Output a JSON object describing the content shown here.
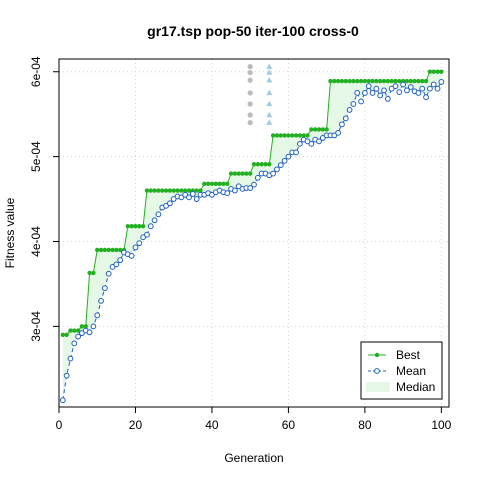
{
  "chart_data": {
    "type": "line",
    "title": "gr17.tsp pop-50 iter-100 cross-0",
    "xlabel": "Generation",
    "ylabel": "Fitness value",
    "xlim": [
      0,
      102
    ],
    "ylim": [
      0.000205,
      0.000615
    ],
    "x_ticks": [
      0,
      20,
      40,
      60,
      80,
      100
    ],
    "x_tick_labels": [
      "0",
      "20",
      "40",
      "60",
      "80",
      "100"
    ],
    "y_ticks": [
      0.0003,
      0.0004,
      0.0005,
      0.0006
    ],
    "y_tick_labels": [
      "3e-04",
      "4e-04",
      "5e-04",
      "6e-04"
    ],
    "grid": true,
    "legend_position": "bottom-right",
    "x": [
      1,
      2,
      3,
      4,
      5,
      6,
      7,
      8,
      9,
      10,
      11,
      12,
      13,
      14,
      15,
      16,
      17,
      18,
      19,
      20,
      21,
      22,
      23,
      24,
      25,
      26,
      27,
      28,
      29,
      30,
      31,
      32,
      33,
      34,
      35,
      36,
      37,
      38,
      39,
      40,
      41,
      42,
      43,
      44,
      45,
      46,
      47,
      48,
      49,
      50,
      51,
      52,
      53,
      54,
      55,
      56,
      57,
      58,
      59,
      60,
      61,
      62,
      63,
      64,
      65,
      66,
      67,
      68,
      69,
      70,
      71,
      72,
      73,
      74,
      75,
      76,
      77,
      78,
      79,
      80,
      81,
      82,
      83,
      84,
      85,
      86,
      87,
      88,
      89,
      90,
      91,
      92,
      93,
      94,
      95,
      96,
      97,
      98,
      99,
      100
    ],
    "series": [
      {
        "name": "Best",
        "color": "#22b022",
        "values": [
          0.00029,
          0.00029,
          0.000295,
          0.000295,
          0.000295,
          0.0003,
          0.0003,
          0.000363,
          0.000363,
          0.00039,
          0.00039,
          0.00039,
          0.00039,
          0.00039,
          0.00039,
          0.00039,
          0.00039,
          0.000418,
          0.000418,
          0.000418,
          0.000418,
          0.000418,
          0.00046,
          0.00046,
          0.00046,
          0.00046,
          0.00046,
          0.00046,
          0.00046,
          0.00046,
          0.00046,
          0.00046,
          0.00046,
          0.00046,
          0.00046,
          0.00046,
          0.00046,
          0.000468,
          0.000468,
          0.000468,
          0.000468,
          0.000468,
          0.000468,
          0.000468,
          0.00048,
          0.00048,
          0.00048,
          0.00048,
          0.00048,
          0.00048,
          0.000491,
          0.000491,
          0.000491,
          0.000491,
          0.000491,
          0.000525,
          0.000525,
          0.000525,
          0.000525,
          0.000525,
          0.000525,
          0.000525,
          0.000525,
          0.000525,
          0.000525,
          0.000532,
          0.000532,
          0.000532,
          0.000532,
          0.000532,
          0.000589,
          0.000589,
          0.000589,
          0.000589,
          0.000589,
          0.000589,
          0.000589,
          0.000589,
          0.000589,
          0.000589,
          0.000589,
          0.000589,
          0.000589,
          0.000589,
          0.000589,
          0.000589,
          0.000589,
          0.000589,
          0.000589,
          0.000589,
          0.000589,
          0.000589,
          0.000589,
          0.000589,
          0.000589,
          0.000589,
          0.0006,
          0.0006,
          0.0006,
          0.0006
        ]
      },
      {
        "name": "Mean",
        "color": "#1f5fbf",
        "values": [
          0.000213,
          0.000242,
          0.000262,
          0.00028,
          0.000288,
          0.000292,
          0.000295,
          0.000293,
          0.0003,
          0.000313,
          0.00033,
          0.000345,
          0.000362,
          0.00037,
          0.000373,
          0.000378,
          0.000387,
          0.000385,
          0.000383,
          0.000393,
          0.000398,
          0.000405,
          0.000408,
          0.000418,
          0.000425,
          0.000432,
          0.00044,
          0.000442,
          0.000445,
          0.00045,
          0.000453,
          0.000452,
          0.000455,
          0.000452,
          0.000456,
          0.00045,
          0.000455,
          0.000455,
          0.000457,
          0.000455,
          0.000458,
          0.00046,
          0.000458,
          0.000457,
          0.000462,
          0.00046,
          0.000465,
          0.000462,
          0.000463,
          0.000463,
          0.000467,
          0.000475,
          0.00048,
          0.00048,
          0.000478,
          0.00048,
          0.000485,
          0.00049,
          0.000495,
          0.0005,
          0.000505,
          0.000505,
          0.000515,
          0.00052,
          0.000518,
          0.000515,
          0.00052,
          0.000518,
          0.000522,
          0.000525,
          0.000525,
          0.000525,
          0.000528,
          0.000538,
          0.000545,
          0.000555,
          0.000562,
          0.000575,
          0.000565,
          0.000575,
          0.000583,
          0.000575,
          0.00058,
          0.000572,
          0.000578,
          0.000568,
          0.00058,
          0.000583,
          0.000576,
          0.000585,
          0.000578,
          0.000582,
          0.000577,
          0.000575,
          0.00058,
          0.00057,
          0.00058,
          0.000585,
          0.00058,
          0.000588
        ]
      },
      {
        "name": "Median",
        "color": "#e5f8e5",
        "values": [
          0.00029,
          0.00029,
          0.000295,
          0.000295,
          0.000295,
          0.0003,
          0.0003,
          0.000363,
          0.000363,
          0.00039,
          0.00039,
          0.00039,
          0.00039,
          0.00039,
          0.00039,
          0.00039,
          0.00039,
          0.000418,
          0.000418,
          0.000418,
          0.000418,
          0.000418,
          0.00046,
          0.00046,
          0.00046,
          0.00046,
          0.00046,
          0.00046,
          0.00046,
          0.00046,
          0.00046,
          0.00046,
          0.00046,
          0.00046,
          0.00046,
          0.00046,
          0.00046,
          0.000468,
          0.000468,
          0.000468,
          0.000468,
          0.000468,
          0.000468,
          0.000468,
          0.00048,
          0.00048,
          0.00048,
          0.00048,
          0.00048,
          0.00048,
          0.000491,
          0.000491,
          0.000491,
          0.000491,
          0.000491,
          0.000525,
          0.000525,
          0.000525,
          0.000525,
          0.000525,
          0.000525,
          0.000525,
          0.000525,
          0.000525,
          0.000525,
          0.000532,
          0.000532,
          0.000532,
          0.000532,
          0.000532,
          0.000589,
          0.000589,
          0.000589,
          0.000589,
          0.000589,
          0.000589,
          0.000589,
          0.000589,
          0.000589,
          0.000589,
          0.000589,
          0.000589,
          0.000589,
          0.000589,
          0.000589,
          0.000589,
          0.000589,
          0.000589,
          0.000589,
          0.000589,
          0.000589,
          0.000589,
          0.000589,
          0.000589,
          0.000589,
          0.000589,
          0.0006,
          0.0006,
          0.0006,
          0.0006
        ]
      }
    ],
    "extra_points": [
      {
        "x": 50,
        "y": 0.000606,
        "shape": "circle",
        "color": "#bbbbbb"
      },
      {
        "x": 50,
        "y": 0.000599,
        "shape": "circle",
        "color": "#bbbbbb"
      },
      {
        "x": 50,
        "y": 0.00059,
        "shape": "circle",
        "color": "#bbbbbb"
      },
      {
        "x": 50,
        "y": 0.000575,
        "shape": "circle",
        "color": "#bbbbbb"
      },
      {
        "x": 50,
        "y": 0.000562,
        "shape": "circle",
        "color": "#bbbbbb"
      },
      {
        "x": 50,
        "y": 0.000549,
        "shape": "circle",
        "color": "#bbbbbb"
      },
      {
        "x": 50,
        "y": 0.00054,
        "shape": "circle",
        "color": "#bbbbbb"
      },
      {
        "x": 55,
        "y": 0.000606,
        "shape": "triangle",
        "color": "#9ecae1"
      },
      {
        "x": 55,
        "y": 0.000599,
        "shape": "triangle",
        "color": "#9ecae1"
      },
      {
        "x": 55,
        "y": 0.00059,
        "shape": "triangle",
        "color": "#9ecae1"
      },
      {
        "x": 55,
        "y": 0.000575,
        "shape": "triangle",
        "color": "#9ecae1"
      },
      {
        "x": 55,
        "y": 0.000562,
        "shape": "triangle",
        "color": "#9ecae1"
      },
      {
        "x": 55,
        "y": 0.000549,
        "shape": "triangle",
        "color": "#9ecae1"
      },
      {
        "x": 55,
        "y": 0.00054,
        "shape": "triangle",
        "color": "#9ecae1"
      }
    ],
    "legend": [
      {
        "label": "Best",
        "color": "#22b022",
        "style": "solid-point"
      },
      {
        "label": "Mean",
        "color": "#1f5fbf",
        "style": "dashed-open-circle"
      },
      {
        "label": "Median",
        "color": "#e5f8e5",
        "style": "fill"
      }
    ]
  }
}
